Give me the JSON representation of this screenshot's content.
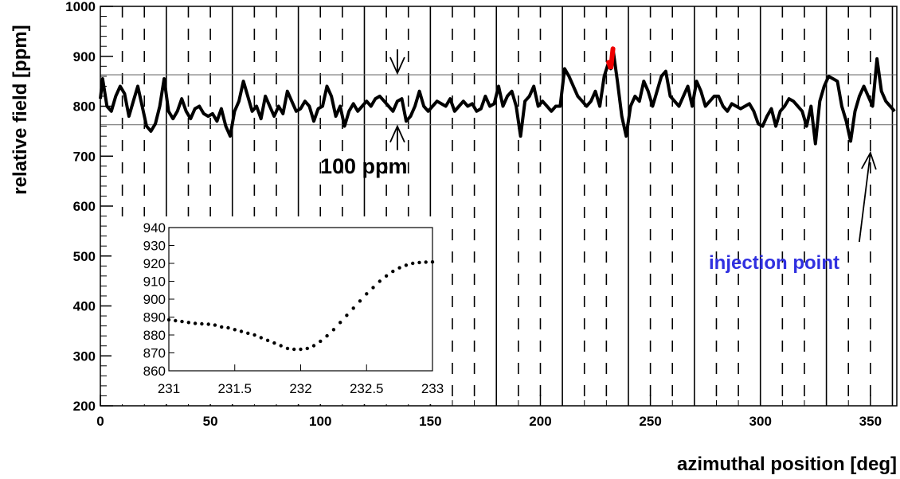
{
  "chart_data": {
    "type": "line",
    "xlabel": "azimuthal position [deg]",
    "ylabel": "relative field [ppm]",
    "xlim": [
      0,
      362
    ],
    "ylim": [
      200,
      1000
    ],
    "xticks": [
      "0",
      "50",
      "100",
      "150",
      "200",
      "250",
      "300",
      "350"
    ],
    "yticks": [
      "200",
      "300",
      "400",
      "500",
      "600",
      "700",
      "800",
      "900",
      "1000"
    ],
    "reference_lines_y": [
      763,
      863
    ],
    "grid": false,
    "highlight_range_x": [
      231,
      233
    ],
    "highlight_color": "#ee0000",
    "line_color": "#000000",
    "annotations": {
      "band_label": "100 ppm",
      "band_arrow_x": 135,
      "injection_label": "injection point",
      "injection_label_color": "#3030e0",
      "injection_arrow_x": 350
    },
    "series": [
      {
        "x": [
          0,
          1,
          3,
          5,
          7,
          9,
          11,
          13,
          15,
          17,
          19,
          21,
          23,
          25,
          27,
          29,
          31,
          33,
          35,
          37,
          39,
          41,
          43,
          45,
          47,
          49,
          51,
          53,
          55,
          57,
          59,
          61,
          63,
          65,
          67,
          69,
          71,
          73,
          75,
          77,
          79,
          81,
          83,
          85,
          87,
          89,
          91,
          93,
          95,
          97,
          99,
          101,
          103,
          105,
          107,
          109,
          111,
          113,
          115,
          117,
          119,
          121,
          123,
          125,
          127,
          129,
          131,
          133,
          135,
          137,
          139,
          141,
          143,
          145,
          147,
          149,
          151,
          153,
          155,
          157,
          159,
          161,
          163,
          165,
          167,
          169,
          171,
          173,
          175,
          177,
          179,
          181,
          183,
          185,
          187,
          189,
          191,
          193,
          195,
          197,
          199,
          201,
          203,
          205,
          207,
          209,
          211,
          213,
          215,
          217,
          219,
          221,
          223,
          225,
          227,
          229,
          231,
          232,
          233,
          235,
          237,
          239,
          241,
          243,
          245,
          247,
          249,
          251,
          253,
          255,
          257,
          259,
          261,
          263,
          265,
          267,
          269,
          271,
          273,
          275,
          277,
          279,
          281,
          283,
          285,
          287,
          289,
          291,
          293,
          295,
          297,
          299,
          301,
          303,
          305,
          307,
          309,
          311,
          313,
          315,
          317,
          319,
          321,
          323,
          325,
          327,
          329,
          331,
          333,
          335,
          337,
          339,
          341,
          343,
          345,
          347,
          349,
          351,
          353,
          355,
          357,
          359,
          361
        ],
        "y": [
          815,
          855,
          800,
          790,
          820,
          840,
          825,
          780,
          810,
          840,
          800,
          760,
          750,
          765,
          800,
          855,
          790,
          775,
          790,
          815,
          790,
          775,
          795,
          800,
          785,
          780,
          785,
          770,
          795,
          760,
          740,
          790,
          810,
          850,
          820,
          790,
          800,
          775,
          820,
          800,
          780,
          800,
          785,
          830,
          810,
          790,
          795,
          810,
          800,
          770,
          795,
          800,
          840,
          820,
          780,
          800,
          760,
          790,
          805,
          790,
          800,
          810,
          800,
          815,
          820,
          810,
          800,
          790,
          810,
          815,
          770,
          780,
          800,
          830,
          800,
          790,
          800,
          810,
          805,
          800,
          815,
          790,
          800,
          810,
          800,
          805,
          790,
          795,
          820,
          800,
          805,
          840,
          800,
          820,
          830,
          800,
          740,
          810,
          820,
          840,
          800,
          810,
          800,
          790,
          800,
          800,
          875,
          860,
          840,
          820,
          810,
          800,
          810,
          830,
          800,
          860,
          888,
          875,
          915,
          850,
          780,
          740,
          800,
          820,
          810,
          850,
          830,
          800,
          830,
          860,
          870,
          820,
          810,
          800,
          820,
          840,
          800,
          850,
          830,
          800,
          810,
          820,
          820,
          800,
          790,
          805,
          800,
          795,
          800,
          805,
          790,
          765,
          760,
          780,
          795,
          760,
          790,
          800,
          815,
          810,
          800,
          790,
          760,
          800,
          725,
          810,
          840,
          860,
          855,
          850,
          800,
          770,
          730,
          790,
          820,
          840,
          820,
          800,
          895,
          830,
          810,
          800,
          790
        ]
      }
    ],
    "inset": {
      "type": "scatter",
      "xlim": [
        231,
        233
      ],
      "ylim": [
        860,
        940
      ],
      "xticks": [
        "231",
        "231.5",
        "232",
        "232.5",
        "233"
      ],
      "yticks": [
        "860",
        "870",
        "880",
        "890",
        "900",
        "910",
        "920",
        "930",
        "940"
      ],
      "series": [
        {
          "x": [
            231.0,
            231.05,
            231.1,
            231.15,
            231.2,
            231.25,
            231.3,
            231.35,
            231.4,
            231.45,
            231.5,
            231.55,
            231.6,
            231.65,
            231.7,
            231.75,
            231.8,
            231.85,
            231.9,
            231.95,
            232.0,
            232.05,
            232.1,
            232.15,
            232.2,
            232.25,
            232.3,
            232.35,
            232.4,
            232.45,
            232.5,
            232.55,
            232.6,
            232.65,
            232.7,
            232.75,
            232.8,
            232.85,
            232.9,
            232.95,
            233.0
          ],
          "y": [
            888.5,
            888.0,
            887.5,
            887.0,
            886.5,
            886.2,
            886.0,
            885.5,
            884.5,
            884.0,
            883.0,
            882.0,
            881.0,
            880.0,
            878.5,
            877.0,
            875.5,
            874.0,
            872.5,
            872.0,
            872.0,
            872.5,
            874.0,
            876.5,
            879.5,
            883.0,
            887.0,
            891.0,
            895.0,
            899.0,
            903.0,
            906.5,
            910.0,
            913.0,
            915.5,
            917.5,
            919.0,
            920.0,
            920.5,
            920.7,
            920.8
          ]
        }
      ]
    }
  }
}
